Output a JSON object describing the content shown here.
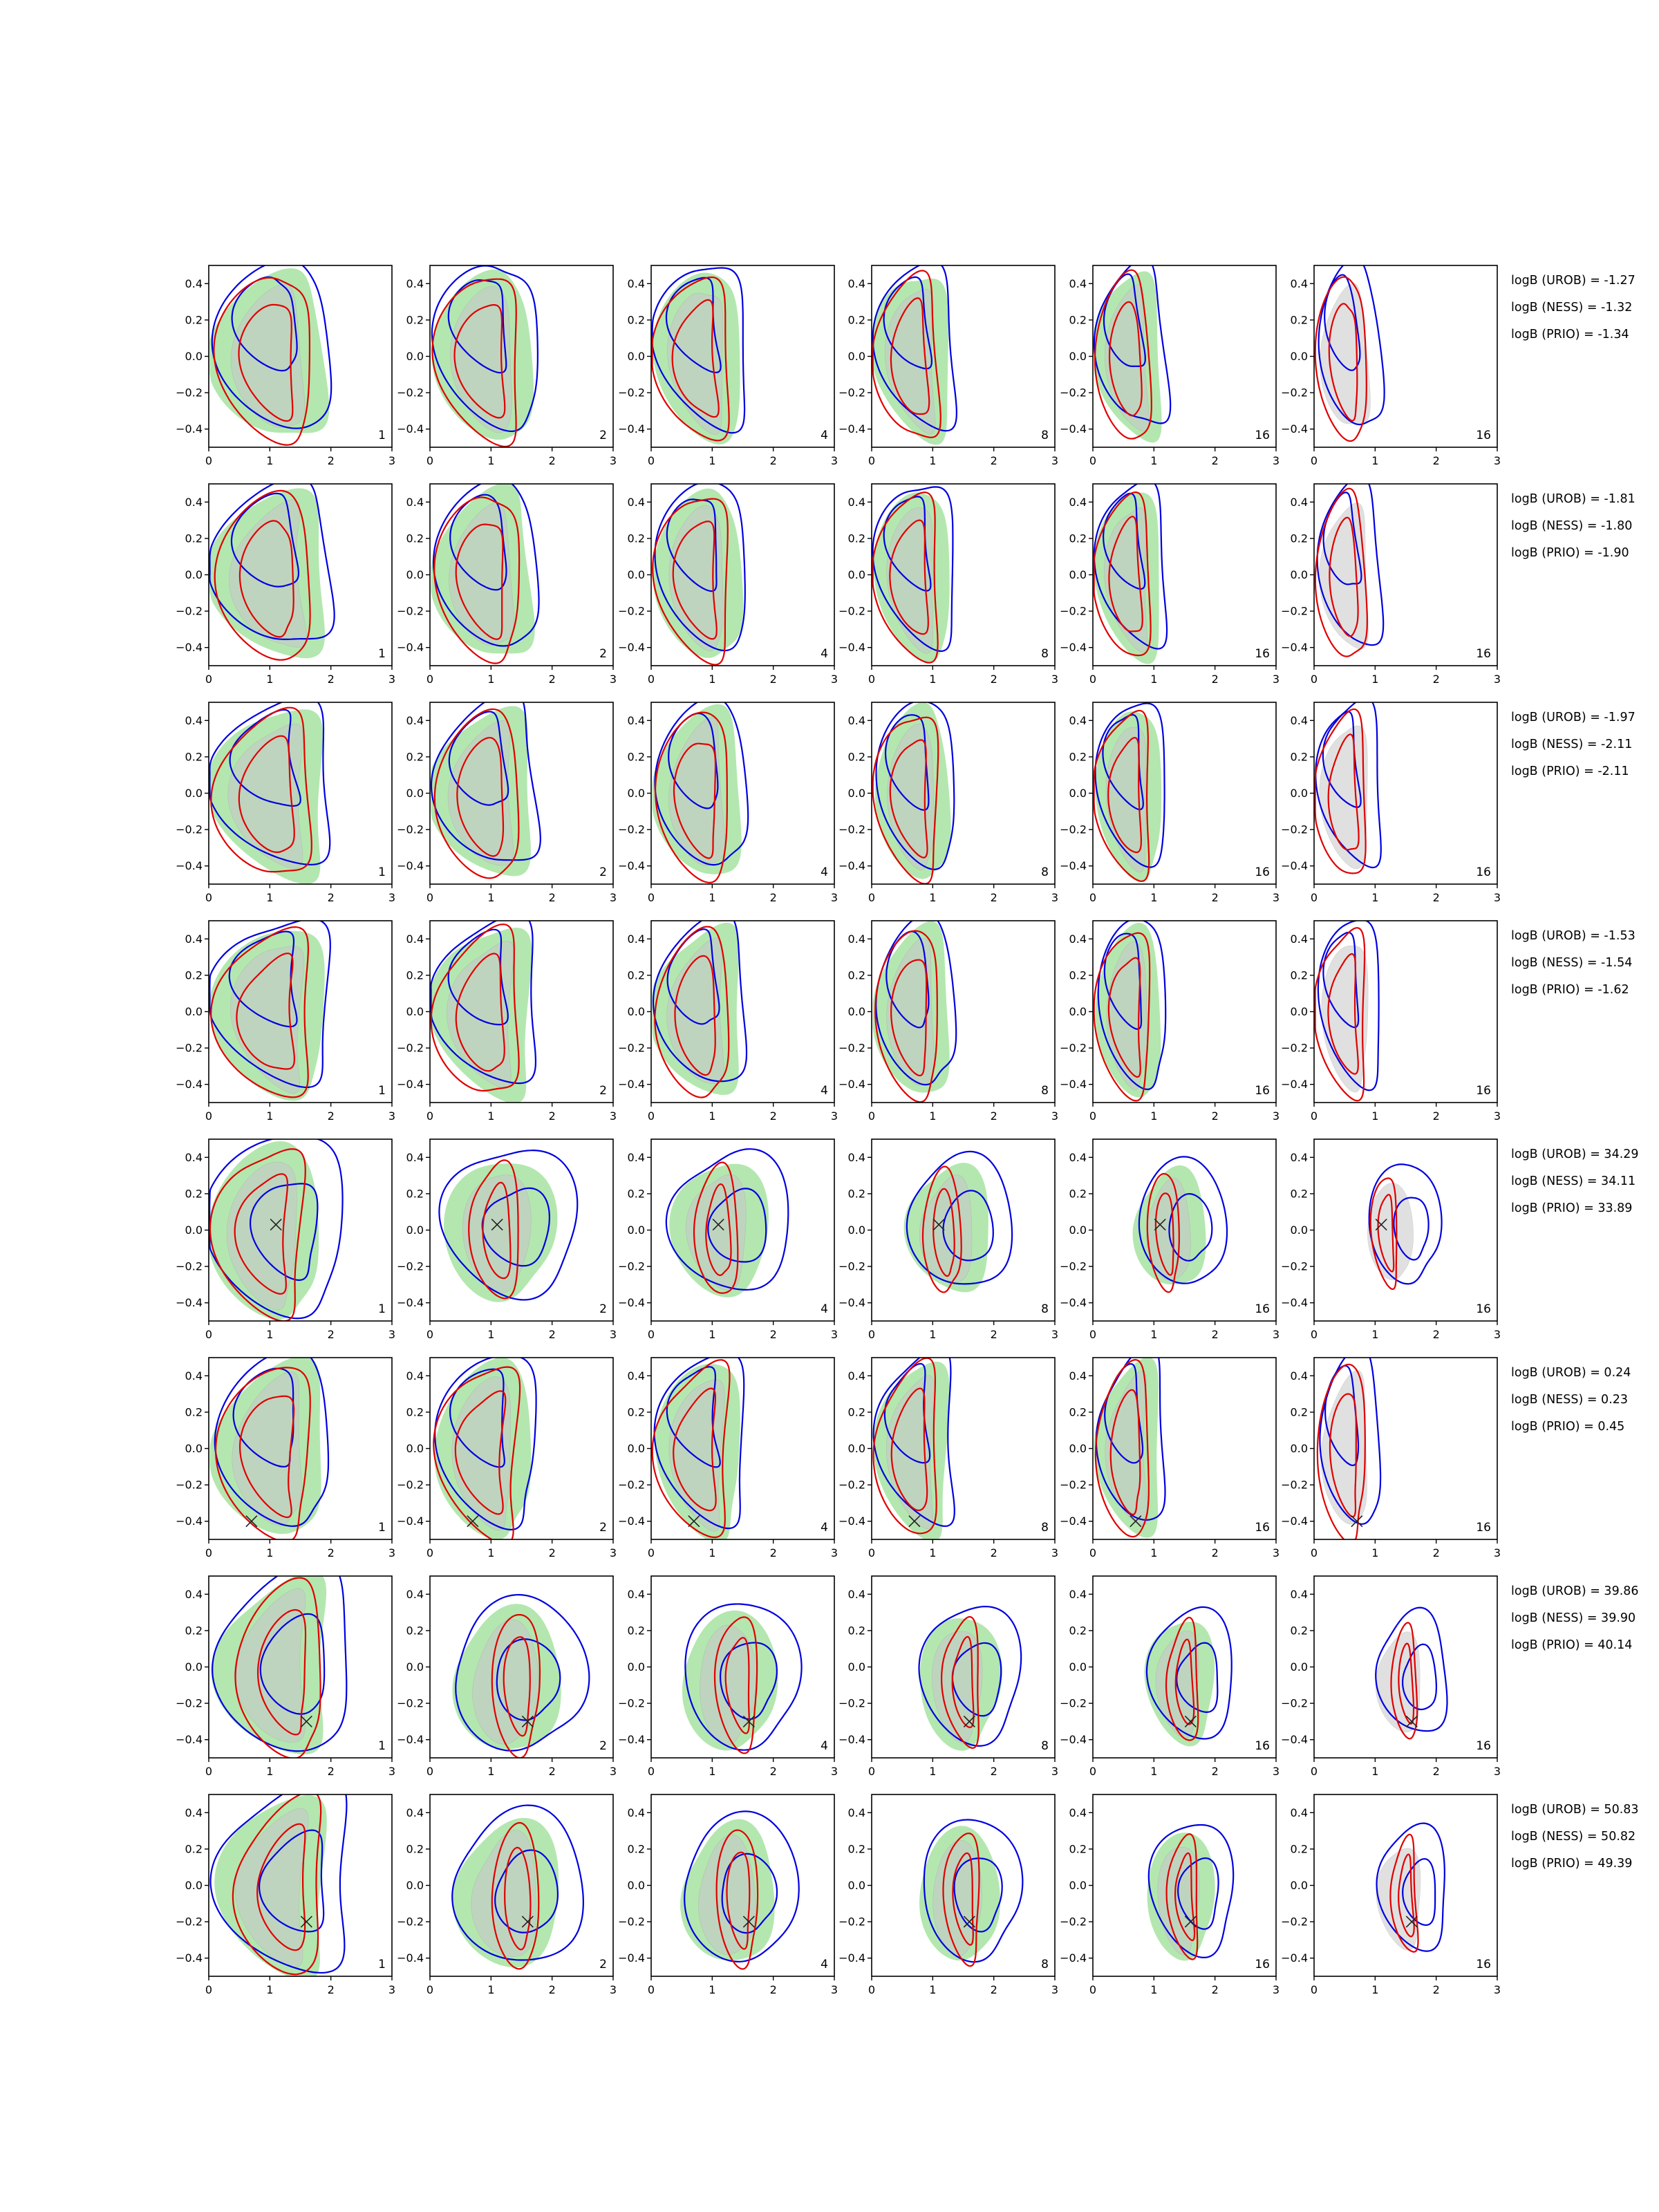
{
  "chart_data": {
    "type": "contour-grid",
    "x_axis": {
      "range": [
        0,
        3
      ],
      "ticks": [
        "0",
        "1",
        "2",
        "3"
      ]
    },
    "y_axis": {
      "range": [
        -0.5,
        0.5
      ],
      "ticks": [
        "−0.4",
        "−0.2",
        "0.0",
        "0.2",
        "0.4"
      ]
    },
    "colors": {
      "green_fill": "#a6e3a1",
      "grey_fill": "#c8c8c8",
      "red_contour": "#e00000",
      "blue_contour": "#0000e0",
      "marker": "#222222"
    },
    "column_labels": [
      "1",
      "2",
      "4",
      "8",
      "16",
      "16"
    ],
    "rows": [
      {
        "marker": null,
        "bayes_factors": [
          "logB (UROB) = -1.27",
          "logB (NESS) = -1.32",
          "logB (PRIO) = -1.34"
        ]
      },
      {
        "marker": null,
        "bayes_factors": [
          "logB (UROB) = -1.81",
          "logB (NESS) = -1.80",
          "logB (PRIO) = -1.90"
        ]
      },
      {
        "marker": null,
        "bayes_factors": [
          "logB (UROB) = -1.97",
          "logB (NESS) = -2.11",
          "logB (PRIO) = -2.11"
        ]
      },
      {
        "marker": null,
        "bayes_factors": [
          "logB (UROB) = -1.53",
          "logB (NESS) = -1.54",
          "logB (PRIO) = -1.62"
        ]
      },
      {
        "marker": {
          "x": 1.1,
          "y": 0.03
        },
        "bayes_factors": [
          "logB (UROB) = 34.29",
          "logB (NESS) = 34.11",
          "logB (PRIO) = 33.89"
        ]
      },
      {
        "marker": {
          "x": 0.7,
          "y": -0.4
        },
        "bayes_factors": [
          "logB (UROB) = 0.24",
          "logB (NESS) = 0.23",
          "logB (PRIO) = 0.45"
        ]
      },
      {
        "marker": {
          "x": 1.6,
          "y": -0.3
        },
        "bayes_factors": [
          "logB (UROB) = 39.86",
          "logB (NESS) = 39.90",
          "logB (PRIO) = 40.14"
        ]
      },
      {
        "marker": {
          "x": 1.6,
          "y": -0.2
        },
        "bayes_factors": [
          "logB (UROB) = 50.83",
          "logB (NESS) = 50.82",
          "logB (PRIO) = 49.39"
        ]
      }
    ]
  }
}
